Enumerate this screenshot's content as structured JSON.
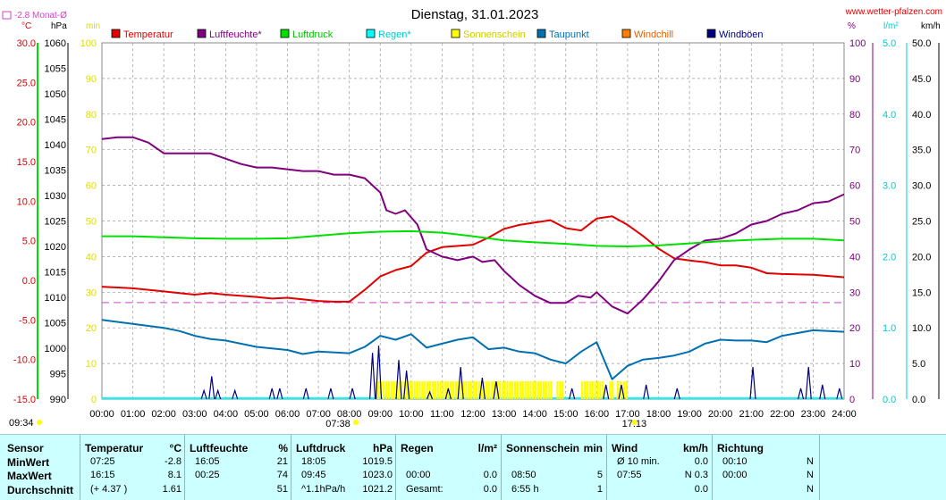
{
  "site": "www.wetter-pfalzen.com",
  "monthly_avg_label": "-2.8 Monat-Ø",
  "colors": {
    "temperature": "#e00000",
    "humidity": "#800080",
    "pressure": "#00e000",
    "rain": "#00ffff",
    "sunshine": "#ffff00",
    "dewpoint": "#0070b0",
    "windchill": "#ff8000",
    "gust": "#000080",
    "avgline": "#cc44cc",
    "stats_bg": "#ccffff"
  },
  "chart_data": {
    "type": "line",
    "title": "Dienstag, 31.01.2023",
    "legend_position": "top",
    "grid": true,
    "legend": [
      {
        "key": "temperature",
        "label": "Temperatur"
      },
      {
        "key": "humidity",
        "label": "Luftfeuchte*"
      },
      {
        "key": "pressure",
        "label": "Luftdruck"
      },
      {
        "key": "rain",
        "label": "Regen*"
      },
      {
        "key": "sunshine",
        "label": "Sonnenschein"
      },
      {
        "key": "dewpoint",
        "label": "Taupunkt"
      },
      {
        "key": "windchill",
        "label": "Windchill"
      },
      {
        "key": "gust",
        "label": "Windböen"
      }
    ],
    "x_ticks": [
      "00:00",
      "01:00",
      "02:00",
      "03:00",
      "04:00",
      "05:00",
      "06:00",
      "07:00",
      "08:00",
      "09:00",
      "10:00",
      "11:00",
      "12:00",
      "13:00",
      "14:00",
      "15:00",
      "16:00",
      "17:00",
      "18:00",
      "19:00",
      "20:00",
      "21:00",
      "22:00",
      "23:00",
      "24:00"
    ],
    "x_annotations": [
      {
        "time": "07:38",
        "hour": 7.633,
        "row": 1
      },
      {
        "time": "17:13",
        "hour": 17.217,
        "row": 1
      },
      {
        "time": "09:34",
        "hour": -1,
        "row": 2
      }
    ],
    "axes": {
      "temperature": {
        "unit": "°C",
        "range": [
          -15,
          30
        ],
        "ticks": [
          "30.0",
          "25.0",
          "20.0",
          "15.0",
          "10.0",
          "5.0",
          "0.0",
          "-5.0",
          "-10.0",
          "-15.0"
        ]
      },
      "pressure": {
        "unit": "hPa",
        "range": [
          990,
          1060
        ],
        "ticks": [
          "1060",
          "1055",
          "1050",
          "1045",
          "1040",
          "1035",
          "1030",
          "1025",
          "1020",
          "1015",
          "1010",
          "1005",
          "1000",
          "995",
          "990"
        ]
      },
      "sunshine_min": {
        "unit": "min",
        "range": [
          0,
          100
        ],
        "ticks": [
          "100",
          "90",
          "80",
          "70",
          "60",
          "50",
          "40",
          "30",
          "20",
          "10",
          "0"
        ]
      },
      "humidity": {
        "unit": "%",
        "range": [
          0,
          100
        ],
        "ticks": [
          "100",
          "90",
          "80",
          "70",
          "60",
          "50",
          "40",
          "30",
          "20",
          "10",
          "0"
        ]
      },
      "rain": {
        "unit": "l/m²",
        "range": [
          0,
          5
        ],
        "ticks": [
          "5.0",
          "4.0",
          "3.0",
          "2.0",
          "1.0",
          "0.0"
        ]
      },
      "wind": {
        "unit": "km/h",
        "range": [
          0,
          50
        ],
        "ticks": [
          "50.0",
          "45.0",
          "40.0",
          "35.0",
          "30.0",
          "25.0",
          "20.0",
          "15.0",
          "10.0",
          "5.0",
          "0.0"
        ]
      }
    },
    "monthly_avg_temperature": -2.8,
    "series": [
      {
        "name": "Temperatur",
        "key": "temperature",
        "axis": "temperature",
        "x": [
          0,
          1,
          2,
          2.5,
          3,
          3.5,
          4,
          5,
          5.5,
          6,
          7,
          7.5,
          8,
          8.5,
          9,
          9.5,
          10,
          10.5,
          11,
          12,
          12.5,
          13,
          13.5,
          14,
          14.5,
          15,
          15.5,
          16,
          16.5,
          17,
          17.5,
          18,
          18.5,
          19,
          19.5,
          20,
          20.5,
          21,
          21.5,
          22,
          23,
          24
        ],
        "y": [
          -0.8,
          -1.0,
          -1.4,
          -1.6,
          -1.8,
          -1.6,
          -1.8,
          -2.1,
          -2.3,
          -2.2,
          -2.6,
          -2.7,
          -2.7,
          -1.2,
          0.5,
          1.3,
          1.8,
          3.5,
          4.2,
          4.5,
          5.4,
          6.5,
          7.0,
          7.3,
          7.6,
          6.6,
          6.3,
          7.8,
          8.1,
          7.0,
          5.6,
          4.0,
          2.8,
          2.5,
          2.3,
          1.9,
          1.9,
          1.6,
          0.9,
          0.8,
          0.7,
          0.4
        ]
      },
      {
        "name": "Luftfeuchte*",
        "key": "humidity",
        "axis": "humidity",
        "x": [
          0,
          0.5,
          1,
          1.5,
          2,
          2.5,
          3,
          3.5,
          4,
          4.5,
          5,
          5.5,
          6,
          6.5,
          7,
          7.5,
          8,
          8.5,
          9,
          9.2,
          9.5,
          9.8,
          10.2,
          10.5,
          11,
          11.5,
          12,
          12.3,
          12.7,
          13,
          13.5,
          14,
          14.5,
          15,
          15.4,
          15.8,
          16,
          16.5,
          17,
          17.5,
          18,
          18.5,
          19,
          19.5,
          20,
          20.5,
          21,
          21.5,
          22,
          22.5,
          23,
          23.5,
          24
        ],
        "y": [
          73,
          73.5,
          73.5,
          72,
          69,
          69,
          69,
          69,
          67.5,
          66,
          65,
          65,
          64.5,
          64,
          64,
          63,
          63,
          62,
          58,
          53,
          52,
          53,
          49,
          42,
          40,
          39,
          40,
          38.5,
          39,
          36,
          32,
          29,
          27,
          27,
          29,
          28.5,
          30,
          26,
          24,
          28,
          33,
          39,
          42,
          44.5,
          45,
          46.5,
          49,
          50,
          52,
          53,
          55,
          55.5,
          57.5
        ]
      },
      {
        "name": "Luftdruck",
        "key": "pressure",
        "axis": "pressure",
        "x": [
          0,
          1,
          2,
          3,
          4,
          5,
          6,
          7,
          8,
          9,
          10,
          11,
          12,
          13,
          14,
          15,
          16,
          17,
          18,
          19,
          20,
          21,
          22,
          23,
          24
        ],
        "y": [
          1022.0,
          1022.0,
          1021.8,
          1021.6,
          1021.5,
          1021.5,
          1021.6,
          1022.1,
          1022.6,
          1022.9,
          1023.0,
          1022.7,
          1022.0,
          1021.2,
          1020.8,
          1020.5,
          1020.1,
          1020.0,
          1020.2,
          1020.6,
          1021.0,
          1021.3,
          1021.5,
          1021.5,
          1021.2
        ]
      },
      {
        "name": "Taupunkt",
        "key": "dewpoint",
        "axis": "temperature",
        "x": [
          0,
          1,
          2,
          2.5,
          3,
          3.5,
          4,
          5,
          6,
          6.5,
          7,
          8,
          8.5,
          9,
          9.5,
          10,
          10.5,
          11,
          11.5,
          12,
          12.5,
          13,
          13.5,
          14,
          14.5,
          15,
          15.5,
          16,
          16.5,
          17,
          17.5,
          18,
          18.5,
          19,
          19.5,
          20,
          20.5,
          21,
          21.5,
          22,
          23,
          24
        ],
        "y": [
          -5.0,
          -5.5,
          -6.0,
          -6.4,
          -7.0,
          -7.4,
          -7.6,
          -8.4,
          -8.8,
          -9.3,
          -9.0,
          -9.2,
          -8.4,
          -7.0,
          -7.5,
          -6.8,
          -8.5,
          -8.0,
          -7.5,
          -7.2,
          -8.7,
          -8.5,
          -9.0,
          -9.2,
          -10.0,
          -10.5,
          -9.0,
          -7.8,
          -12.5,
          -10.8,
          -10.0,
          -9.8,
          -9.5,
          -9.0,
          -8.0,
          -7.5,
          -7.6,
          -7.6,
          -7.8,
          -7.0,
          -6.3,
          -6.5
        ]
      }
    ],
    "sunshine_bars": {
      "key": "sunshine",
      "axis": "sunshine_min",
      "intervals": [
        [
          8.83,
          14.5
        ],
        [
          14.7,
          14.95
        ],
        [
          15.5,
          16.2
        ],
        [
          16.4,
          16.55
        ],
        [
          16.65,
          16.75
        ],
        [
          16.85,
          17.0
        ]
      ],
      "value": 5
    },
    "gust_spikes": {
      "key": "gust",
      "axis": "wind",
      "x": [
        3.3,
        3.55,
        3.75,
        4.3,
        5.5,
        5.75,
        6.6,
        7.4,
        8.1,
        8.75,
        8.95,
        9.6,
        9.85,
        10.6,
        11.2,
        11.6,
        12.3,
        12.75,
        15.2,
        16.3,
        16.8,
        17.6,
        18.6,
        21.05,
        22.6,
        22.85,
        23.3,
        23.85
      ],
      "y": [
        1.2,
        3.2,
        1.2,
        1.2,
        1.5,
        1.5,
        1.5,
        1.5,
        1.5,
        6.5,
        7.5,
        5.5,
        4.0,
        1.0,
        1.5,
        4.5,
        3.0,
        2.5,
        1.5,
        2.0,
        2.0,
        2.0,
        1.5,
        4.5,
        1.5,
        4.5,
        2.0,
        1.5
      ]
    }
  },
  "stats": {
    "columns": [
      {
        "header": [
          "Sensor",
          ""
        ],
        "rows": [
          [
            "MinWert",
            ""
          ],
          [
            "MaxWert",
            ""
          ],
          [
            "Durchschnitt",
            ""
          ]
        ]
      },
      {
        "header": [
          "Temperatur",
          "°C"
        ],
        "rows": [
          [
            "07:25",
            "-2.8"
          ],
          [
            "16:15",
            "8.1"
          ],
          [
            "(+ 4.37 )",
            "1.61"
          ]
        ]
      },
      {
        "header": [
          "Luftfeuchte",
          "%"
        ],
        "rows": [
          [
            "16:05",
            "21"
          ],
          [
            "00:25",
            "74"
          ],
          [
            "",
            "51"
          ]
        ]
      },
      {
        "header": [
          "Luftdruck",
          "hPa"
        ],
        "rows": [
          [
            "18:05",
            "1019.5"
          ],
          [
            "09:45",
            "1023.0"
          ],
          [
            "^1.1hPa/h",
            "1021.2"
          ]
        ]
      },
      {
        "header": [
          "Regen",
          "l/m²"
        ],
        "rows": [
          [
            "",
            ""
          ],
          [
            "00:00",
            "0.0"
          ],
          [
            "Gesamt:",
            "0.0"
          ]
        ]
      },
      {
        "header": [
          "Sonnenschein",
          "min"
        ],
        "rows": [
          [
            "",
            ""
          ],
          [
            "08:50",
            "5"
          ],
          [
            "6:55 h",
            "1"
          ]
        ]
      },
      {
        "header": [
          "Wind",
          "km/h"
        ],
        "rows": [
          [
            "Ø 10 min.",
            "0.0"
          ],
          [
            "07:55",
            "N 0.3"
          ],
          [
            "",
            "0.0"
          ]
        ]
      },
      {
        "header": [
          "Richtung",
          ""
        ],
        "rows": [
          [
            "00:10",
            "N"
          ],
          [
            "00:00",
            "N"
          ],
          [
            "",
            "N"
          ]
        ]
      }
    ]
  }
}
